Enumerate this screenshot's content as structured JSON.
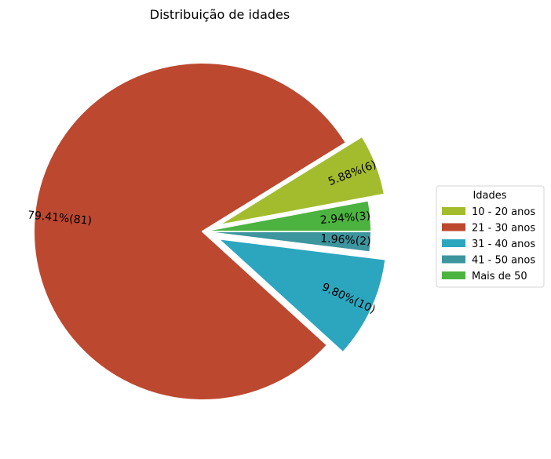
{
  "chart_data": {
    "type": "pie",
    "title": "Distribuição de idades",
    "legend": {
      "title": "Idades",
      "placement": "center-right",
      "entries": [
        "10 - 20 anos",
        "21 - 30 anos",
        "31 - 40 anos",
        "41 - 50 anos",
        "Mais de 50"
      ]
    },
    "slices": [
      {
        "label": "Mais de 50",
        "count": 3,
        "percent_label": "2.94%(3)",
        "color": "#4cb340",
        "exploded": false
      },
      {
        "label": "10 - 20 anos",
        "count": 6,
        "percent_label": "5.88%(6)",
        "color": "#a3bc2e",
        "exploded": true
      },
      {
        "label": "21 - 30 anos",
        "count": 81,
        "percent_label": "79.41%(81)",
        "color": "#bc4830",
        "exploded": false
      },
      {
        "label": "31 - 40 anos",
        "count": 10,
        "percent_label": "9.80%(10)",
        "color": "#2ca6bf",
        "exploded": true
      },
      {
        "label": "41 - 50 anos",
        "count": 2,
        "percent_label": "1.96%(2)",
        "color": "#3d959e",
        "exploded": false
      }
    ],
    "legend_colors": [
      "#a3bc2e",
      "#bc4830",
      "#2ca6bf",
      "#3d959e",
      "#4cb340"
    ]
  }
}
